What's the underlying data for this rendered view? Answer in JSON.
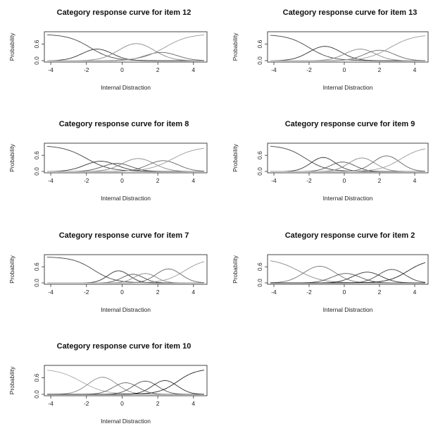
{
  "chart_data": [
    {
      "type": "line",
      "title": "Category response curve for item 12",
      "xlabel": "Internal Distraction",
      "ylabel": "Probability",
      "x_ticks": [
        "-4",
        "-2",
        "0",
        "2",
        "4"
      ],
      "y_ticks": [
        "0.0",
        "0.6"
      ],
      "xlim": [
        -4.2,
        4.6
      ],
      "ylim": [
        0,
        1
      ],
      "series": [
        {
          "kind": "sig_dec",
          "center": -1.8,
          "slope": 1.6,
          "height": 0.96,
          "color": "#444444"
        },
        {
          "kind": "bell",
          "center": -1.4,
          "width": 0.85,
          "height": 0.42,
          "color": "#333333"
        },
        {
          "kind": "bell",
          "center": 0.8,
          "width": 1.0,
          "height": 0.62,
          "color": "#888888"
        },
        {
          "kind": "bell",
          "center": 2.2,
          "width": 0.9,
          "height": 0.3,
          "color": "#666666"
        },
        {
          "kind": "sig_inc",
          "center": 2.4,
          "slope": 1.5,
          "height": 0.97,
          "color": "#999999"
        }
      ]
    },
    {
      "type": "line",
      "title": "Category response curve for item 13",
      "xlabel": "Internal Distraction",
      "ylabel": "Probability",
      "x_ticks": [
        "-4",
        "-2",
        "0",
        "2",
        "4"
      ],
      "y_ticks": [
        "0.0",
        "0.6"
      ],
      "xlim": [
        -4.2,
        4.6
      ],
      "ylim": [
        0,
        1
      ],
      "series": [
        {
          "kind": "sig_dec",
          "center": -2.0,
          "slope": 1.6,
          "height": 0.95,
          "color": "#444444"
        },
        {
          "kind": "bell",
          "center": -1.1,
          "width": 0.9,
          "height": 0.52,
          "color": "#333333"
        },
        {
          "kind": "bell",
          "center": 0.9,
          "width": 0.85,
          "height": 0.42,
          "color": "#888888"
        },
        {
          "kind": "bell",
          "center": 2.0,
          "width": 0.85,
          "height": 0.38,
          "color": "#666666"
        },
        {
          "kind": "sig_inc",
          "center": 2.6,
          "slope": 1.5,
          "height": 0.95,
          "color": "#999999"
        }
      ]
    },
    {
      "type": "line",
      "title": "Category response curve for item 8",
      "xlabel": "Internal Distraction",
      "ylabel": "Probability",
      "x_ticks": [
        "-4",
        "-2",
        "0",
        "2",
        "4"
      ],
      "y_ticks": [
        "0.0",
        "0.6"
      ],
      "xlim": [
        -4.2,
        4.6
      ],
      "ylim": [
        0,
        1
      ],
      "series": [
        {
          "kind": "sig_dec",
          "center": -2.0,
          "slope": 1.5,
          "height": 0.97,
          "color": "#444444"
        },
        {
          "kind": "bell",
          "center": -1.2,
          "width": 0.9,
          "height": 0.38,
          "color": "#333333"
        },
        {
          "kind": "bell",
          "center": -0.3,
          "width": 0.8,
          "height": 0.3,
          "color": "#555555"
        },
        {
          "kind": "bell",
          "center": 0.9,
          "width": 0.9,
          "height": 0.48,
          "color": "#888888"
        },
        {
          "kind": "bell",
          "center": 2.3,
          "width": 0.85,
          "height": 0.4,
          "color": "#666666"
        },
        {
          "kind": "sig_inc",
          "center": 2.8,
          "slope": 1.5,
          "height": 0.92,
          "color": "#999999"
        }
      ]
    },
    {
      "type": "line",
      "title": "Category response curve for item 9",
      "xlabel": "Internal Distraction",
      "ylabel": "Probability",
      "x_ticks": [
        "-4",
        "-2",
        "0",
        "2",
        "4"
      ],
      "y_ticks": [
        "0.0",
        "0.6"
      ],
      "xlim": [
        -4.2,
        4.6
      ],
      "ylim": [
        0,
        1
      ],
      "series": [
        {
          "kind": "sig_dec",
          "center": -2.2,
          "slope": 1.7,
          "height": 0.97,
          "color": "#444444"
        },
        {
          "kind": "bell",
          "center": -1.2,
          "width": 0.7,
          "height": 0.52,
          "color": "#333333"
        },
        {
          "kind": "bell",
          "center": -0.1,
          "width": 0.7,
          "height": 0.35,
          "color": "#555555"
        },
        {
          "kind": "bell",
          "center": 1.0,
          "width": 0.75,
          "height": 0.5,
          "color": "#888888"
        },
        {
          "kind": "bell",
          "center": 2.4,
          "width": 0.75,
          "height": 0.58,
          "color": "#666666"
        },
        {
          "kind": "sig_inc",
          "center": 3.2,
          "slope": 1.7,
          "height": 0.92,
          "color": "#999999"
        }
      ]
    },
    {
      "type": "line",
      "title": "Category response curve for item 7",
      "xlabel": "Internal Distraction",
      "ylabel": "Probability",
      "x_ticks": [
        "-4",
        "-2",
        "0",
        "2",
        "4"
      ],
      "y_ticks": [
        "0.0",
        "0.6"
      ],
      "xlim": [
        -4.2,
        4.6
      ],
      "ylim": [
        0,
        1
      ],
      "series": [
        {
          "kind": "sig_dec",
          "center": -1.6,
          "slope": 1.7,
          "height": 0.97,
          "color": "#444444"
        },
        {
          "kind": "bell",
          "center": -0.2,
          "width": 0.6,
          "height": 0.45,
          "color": "#333333"
        },
        {
          "kind": "bell",
          "center": 0.6,
          "width": 0.6,
          "height": 0.32,
          "color": "#555555"
        },
        {
          "kind": "bell",
          "center": 1.3,
          "width": 0.6,
          "height": 0.35,
          "color": "#888888"
        },
        {
          "kind": "bell",
          "center": 2.6,
          "width": 0.7,
          "height": 0.52,
          "color": "#666666"
        },
        {
          "kind": "sig_inc",
          "center": 3.5,
          "slope": 1.8,
          "height": 0.9,
          "color": "#999999"
        }
      ]
    },
    {
      "type": "line",
      "title": "Category response curve for item 2",
      "xlabel": "Internal Distraction",
      "ylabel": "Probability",
      "x_ticks": [
        "-4",
        "-2",
        "0",
        "2",
        "4"
      ],
      "y_ticks": [
        "0.0",
        "0.6"
      ],
      "xlim": [
        -4.2,
        4.6
      ],
      "ylim": [
        0,
        1
      ],
      "series": [
        {
          "kind": "sig_dec",
          "center": -2.6,
          "slope": 1.5,
          "height": 0.9,
          "color": "#888888"
        },
        {
          "kind": "bell",
          "center": -1.4,
          "width": 0.9,
          "height": 0.62,
          "color": "#777777"
        },
        {
          "kind": "bell",
          "center": 0.1,
          "width": 0.8,
          "height": 0.35,
          "color": "#555555"
        },
        {
          "kind": "bell",
          "center": 1.3,
          "width": 0.8,
          "height": 0.4,
          "color": "#333333"
        },
        {
          "kind": "bell",
          "center": 2.7,
          "width": 0.75,
          "height": 0.5,
          "color": "#444444"
        },
        {
          "kind": "sig_inc",
          "center": 3.6,
          "slope": 1.8,
          "height": 0.88,
          "color": "#222222"
        }
      ]
    },
    {
      "type": "line",
      "title": "Category response curve for item 10",
      "xlabel": "Internal Distraction",
      "ylabel": "Probability",
      "x_ticks": [
        "-4",
        "-2",
        "0",
        "2",
        "4"
      ],
      "y_ticks": [
        "0.0",
        "0.6"
      ],
      "xlim": [
        -4.2,
        4.6
      ],
      "ylim": [
        0,
        1
      ],
      "series": [
        {
          "kind": "sig_dec",
          "center": -2.3,
          "slope": 1.5,
          "height": 0.93,
          "color": "#aaaaaa"
        },
        {
          "kind": "bell",
          "center": -1.1,
          "width": 0.8,
          "height": 0.62,
          "color": "#888888"
        },
        {
          "kind": "bell",
          "center": 0.2,
          "width": 0.7,
          "height": 0.42,
          "color": "#666666"
        },
        {
          "kind": "bell",
          "center": 1.3,
          "width": 0.7,
          "height": 0.48,
          "color": "#555555"
        },
        {
          "kind": "bell",
          "center": 2.4,
          "width": 0.7,
          "height": 0.5,
          "color": "#333333"
        },
        {
          "kind": "sig_inc",
          "center": 3.1,
          "slope": 1.9,
          "height": 0.93,
          "color": "#222222"
        }
      ]
    }
  ]
}
